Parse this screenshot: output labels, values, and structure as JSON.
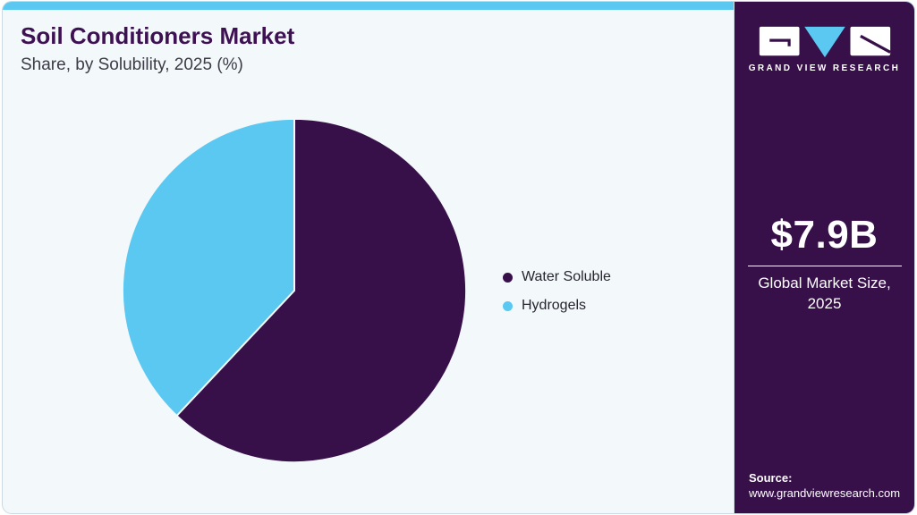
{
  "header": {
    "title": "Soil Conditioners Market",
    "subtitle": "Share, by Solubility, 2025 (%)"
  },
  "chart_data": {
    "type": "pie",
    "title": "Soil Conditioners Market Share, by Solubility, 2025 (%)",
    "units": "%",
    "direction": "clockwise",
    "start_angle_deg": 0,
    "legend_position": "right-middle",
    "slices": [
      {
        "label": "Water Soluble",
        "value": 62,
        "color": "#371049"
      },
      {
        "label": "Hydrogels",
        "value": 38,
        "color": "#5BC8F2"
      }
    ]
  },
  "sidebar": {
    "brand": "GRAND VIEW RESEARCH",
    "market_size_value": "$7.9B",
    "market_size_label": "Global Market Size, 2025",
    "source_label": "Source:",
    "source_url": "www.grandviewresearch.com"
  },
  "colors": {
    "accent_bar": "#5BC8F2",
    "sidebar_bg": "#371049",
    "card_bg": "#F3F8FB",
    "title_text": "#3D1152",
    "subtitle_text": "#3C3C46",
    "legend_text": "#26262E",
    "slice_separator": "#F3F8FB"
  }
}
